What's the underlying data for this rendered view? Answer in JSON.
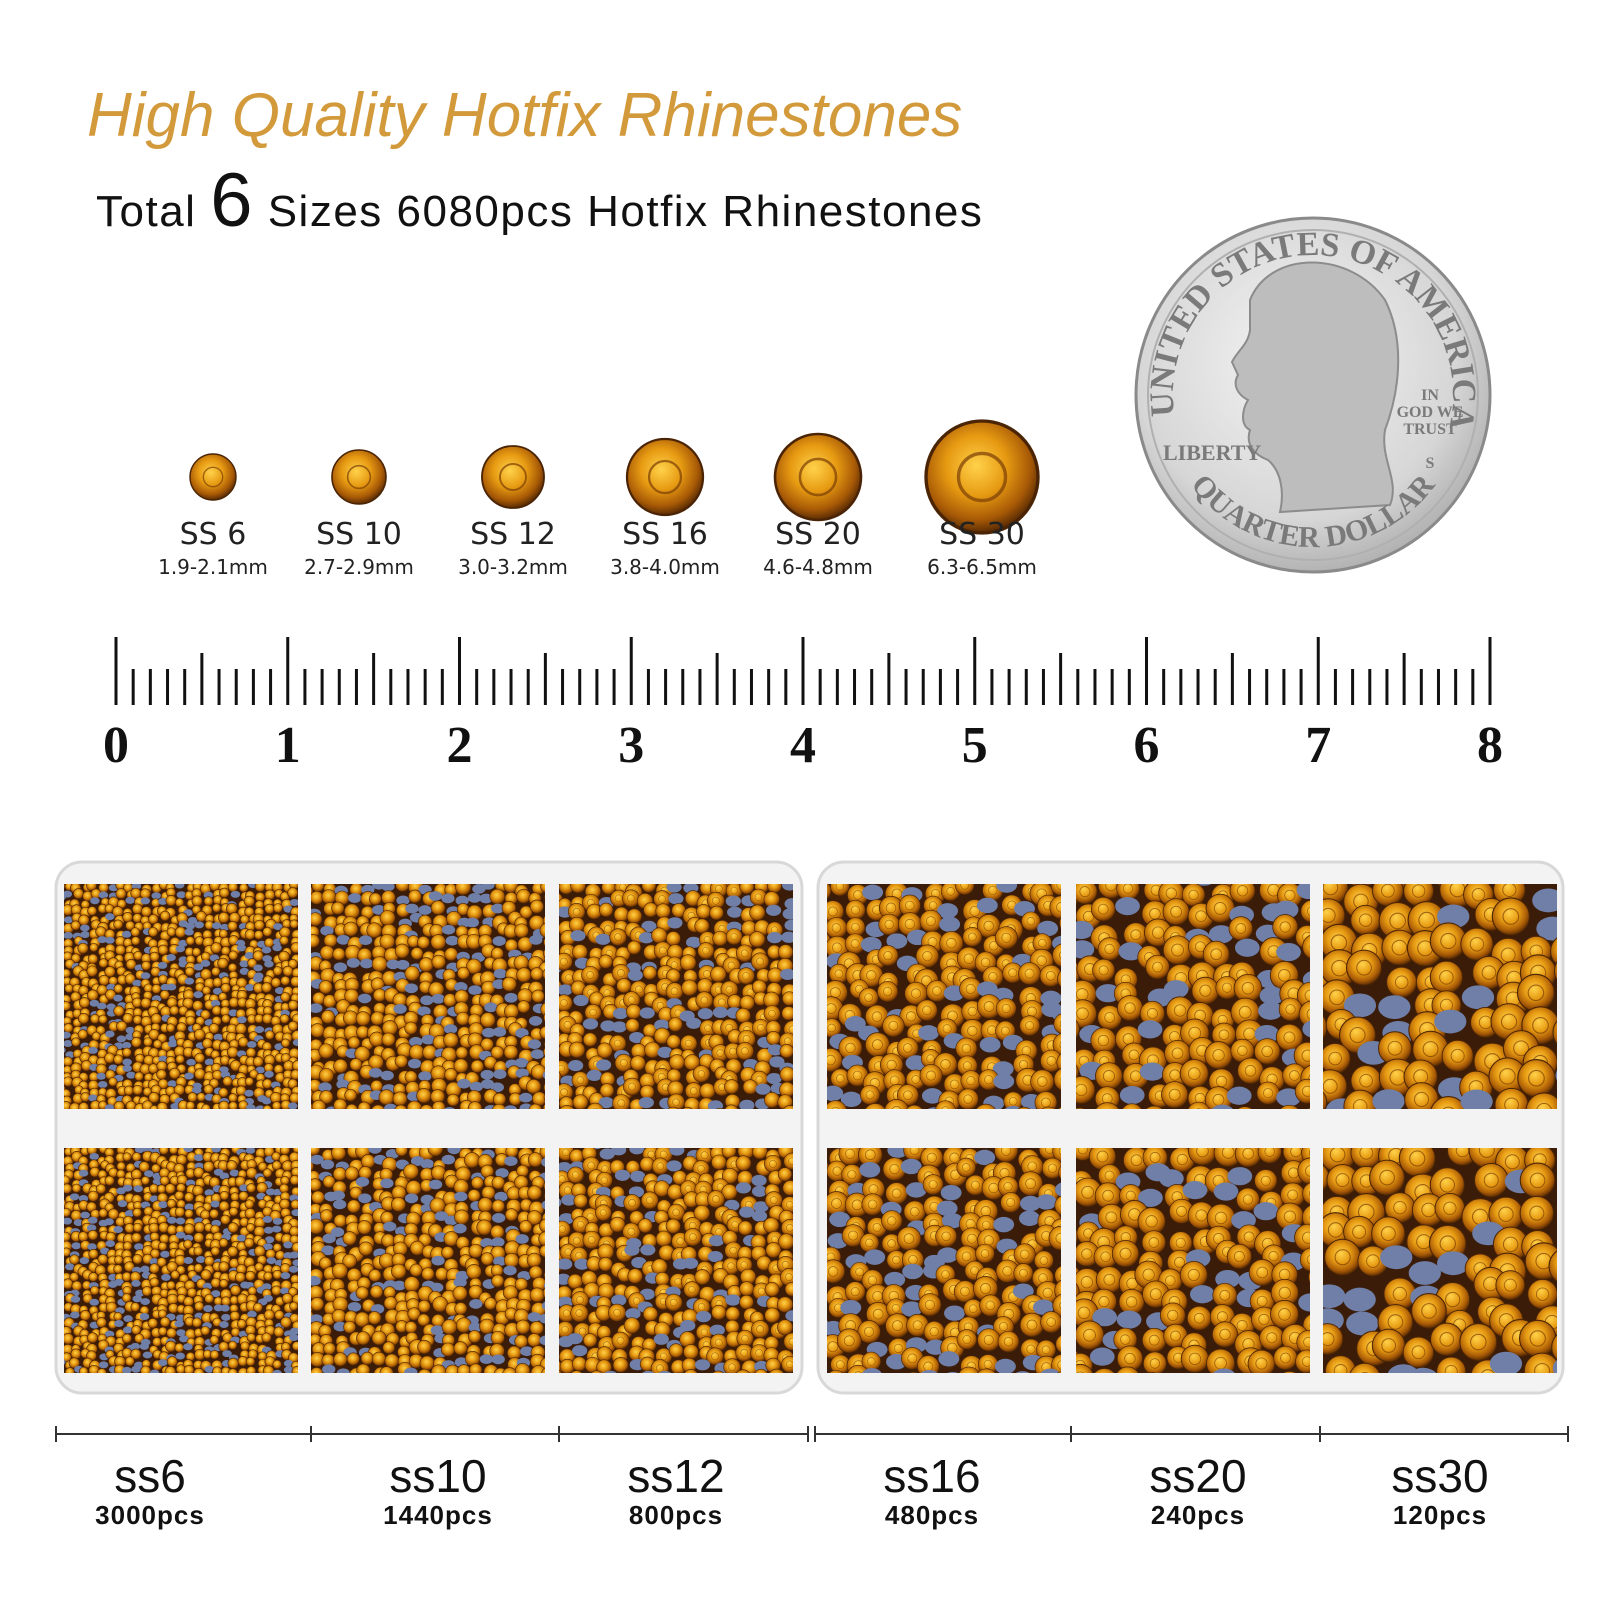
{
  "header": {
    "title": "High Quality Hotfix Rhinestones",
    "subtitle": {
      "prefix": "Total",
      "number": "6",
      "suffix": "Sizes 6080pcs Hotfix Rhinestones"
    }
  },
  "sizes": [
    {
      "label": "SS 6",
      "mm": "1.9-2.1mm"
    },
    {
      "label": "SS 10",
      "mm": "2.7-2.9mm"
    },
    {
      "label": "SS 12",
      "mm": "3.0-3.2mm"
    },
    {
      "label": "SS 16",
      "mm": "3.8-4.0mm"
    },
    {
      "label": "SS 20",
      "mm": "4.6-4.8mm"
    },
    {
      "label": "SS 30",
      "mm": "6.3-6.5mm"
    }
  ],
  "coin": {
    "top": "UNITED STATES OF AMERICA",
    "left": "LIBERTY",
    "motto": [
      "IN",
      "GOD WE",
      "TRUST"
    ],
    "mint": "S",
    "bottom": "QUARTER DOLLAR"
  },
  "ruler": {
    "labels": [
      "0",
      "1",
      "2",
      "3",
      "4",
      "5",
      "6",
      "7",
      "8"
    ]
  },
  "counts": [
    {
      "name": "ss6",
      "pcs": "3000pcs"
    },
    {
      "name": "ss10",
      "pcs": "1440pcs"
    },
    {
      "name": "ss12",
      "pcs": "800pcs"
    },
    {
      "name": "ss16",
      "pcs": "480pcs"
    },
    {
      "name": "ss20",
      "pcs": "240pcs"
    },
    {
      "name": "ss30",
      "pcs": "120pcs"
    }
  ]
}
